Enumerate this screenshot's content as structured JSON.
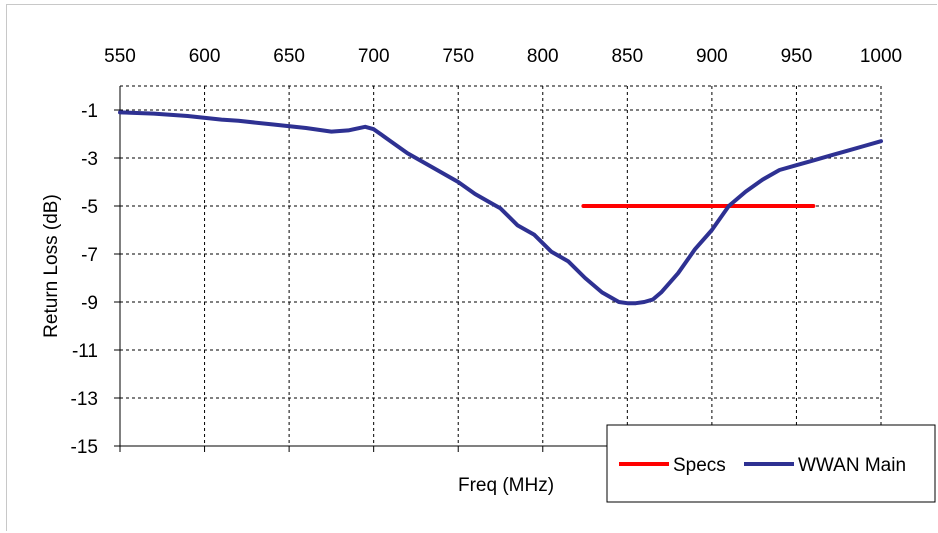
{
  "chart_data": {
    "type": "line",
    "title": "",
    "xlabel": "Freq (MHz)",
    "ylabel": "Return Loss (dB)",
    "xlim": [
      550,
      1000
    ],
    "ylim": [
      -15,
      0
    ],
    "x_ticks": [
      "550",
      "600",
      "650",
      "700",
      "750",
      "800",
      "850",
      "900",
      "950",
      "1000"
    ],
    "y_ticks": [
      "-1",
      "-3",
      "-5",
      "-7",
      "-9",
      "-11",
      "-13",
      "-15"
    ],
    "x_tick_values": [
      550,
      600,
      650,
      700,
      750,
      800,
      850,
      900,
      950,
      1000
    ],
    "y_tick_values": [
      -1,
      -3,
      -5,
      -7,
      -9,
      -11,
      -13,
      -15
    ],
    "x_axis_position": "top",
    "grid": true,
    "legend_position": "bottom-right",
    "series": [
      {
        "name": "Specs",
        "color": "#ff0000",
        "x": [
          824,
          960
        ],
        "y": [
          -5,
          -5
        ]
      },
      {
        "name": "WWAN Main",
        "color": "#2e3192",
        "x": [
          550,
          570,
          590,
          610,
          620,
          640,
          660,
          675,
          685,
          695,
          700,
          710,
          720,
          735,
          750,
          760,
          770,
          775,
          785,
          795,
          805,
          815,
          825,
          835,
          845,
          850,
          855,
          860,
          865,
          870,
          880,
          890,
          900,
          910,
          920,
          930,
          940,
          950,
          960,
          970,
          980,
          990,
          1000
        ],
        "y": [
          -1.1,
          -1.15,
          -1.25,
          -1.4,
          -1.45,
          -1.6,
          -1.75,
          -1.9,
          -1.85,
          -1.7,
          -1.8,
          -2.3,
          -2.8,
          -3.4,
          -4.0,
          -4.5,
          -4.9,
          -5.1,
          -5.8,
          -6.2,
          -6.9,
          -7.3,
          -8.0,
          -8.6,
          -9.0,
          -9.05,
          -9.05,
          -9.0,
          -8.9,
          -8.6,
          -7.8,
          -6.8,
          -6.0,
          -5.0,
          -4.4,
          -3.9,
          -3.5,
          -3.3,
          -3.1,
          -2.9,
          -2.7,
          -2.5,
          -2.3
        ]
      }
    ]
  }
}
